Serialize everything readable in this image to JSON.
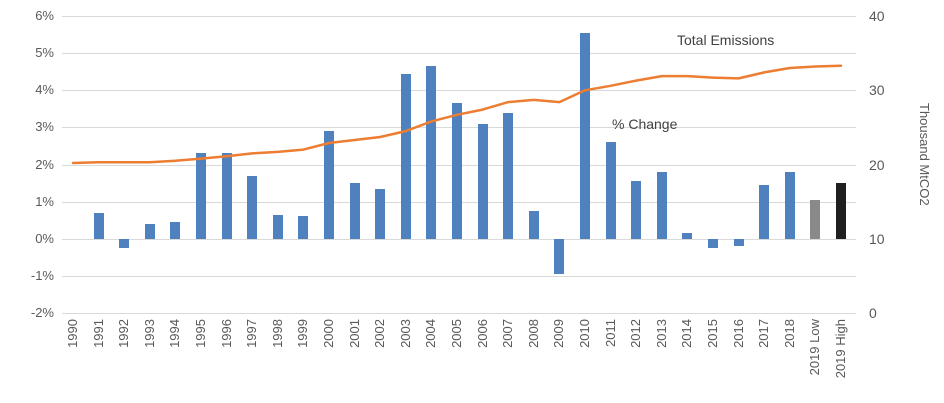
{
  "chart_data": {
    "type": "combo",
    "categories": [
      "1990",
      "1991",
      "1992",
      "1993",
      "1994",
      "1995",
      "1996",
      "1997",
      "1998",
      "1999",
      "2000",
      "2001",
      "2002",
      "2003",
      "2004",
      "2005",
      "2006",
      "2007",
      "2008",
      "2009",
      "2010",
      "2011",
      "2012",
      "2013",
      "2014",
      "2015",
      "2016",
      "2017",
      "2018",
      "2019 Low",
      "2019 High"
    ],
    "series": [
      {
        "name": "% Change",
        "type": "bar",
        "axis": "left",
        "color": "#4e81bd",
        "color_overrides": {
          "2019 Low": "#898989",
          "2019 High": "#1f1f1f"
        },
        "values": [
          null,
          0.7,
          -0.25,
          0.4,
          0.45,
          2.3,
          2.3,
          1.7,
          0.65,
          0.6,
          2.9,
          1.5,
          1.35,
          4.45,
          4.65,
          3.65,
          3.1,
          3.4,
          0.75,
          -0.95,
          5.55,
          2.6,
          1.55,
          1.8,
          0.15,
          -0.25,
          -0.2,
          1.45,
          1.8,
          1.05,
          1.5
        ]
      },
      {
        "name": "Total Emissions",
        "type": "line",
        "axis": "right",
        "color": "#ed7d31",
        "values": [
          20.2,
          20.3,
          20.3,
          20.3,
          20.5,
          20.8,
          21.1,
          21.5,
          21.7,
          22.0,
          22.9,
          23.3,
          23.7,
          24.5,
          25.8,
          26.7,
          27.4,
          28.4,
          28.7,
          28.4,
          30.0,
          30.6,
          31.3,
          31.9,
          31.9,
          31.7,
          31.6,
          32.4,
          33.0,
          33.2,
          33.3
        ]
      }
    ],
    "left_axis": {
      "min": -2,
      "max": 6,
      "ticks": [
        "6%",
        "5%",
        "4%",
        "3%",
        "2%",
        "1%",
        "0%",
        "-1%",
        "-2%"
      ],
      "gridlines": true
    },
    "right_axis": {
      "min": 0,
      "max": 40,
      "ticks": [
        "40",
        "30",
        "20",
        "10",
        "0"
      ],
      "title": "Thousand MtCO2"
    },
    "annotations": [
      {
        "text": "Total Emissions",
        "series": "Total Emissions"
      },
      {
        "text": "% Change",
        "series": "% Change"
      }
    ],
    "legend": "none",
    "colors": {
      "gridline": "#d9d9d9",
      "axis_text": "#595959",
      "annotation_text": "#404040"
    }
  }
}
